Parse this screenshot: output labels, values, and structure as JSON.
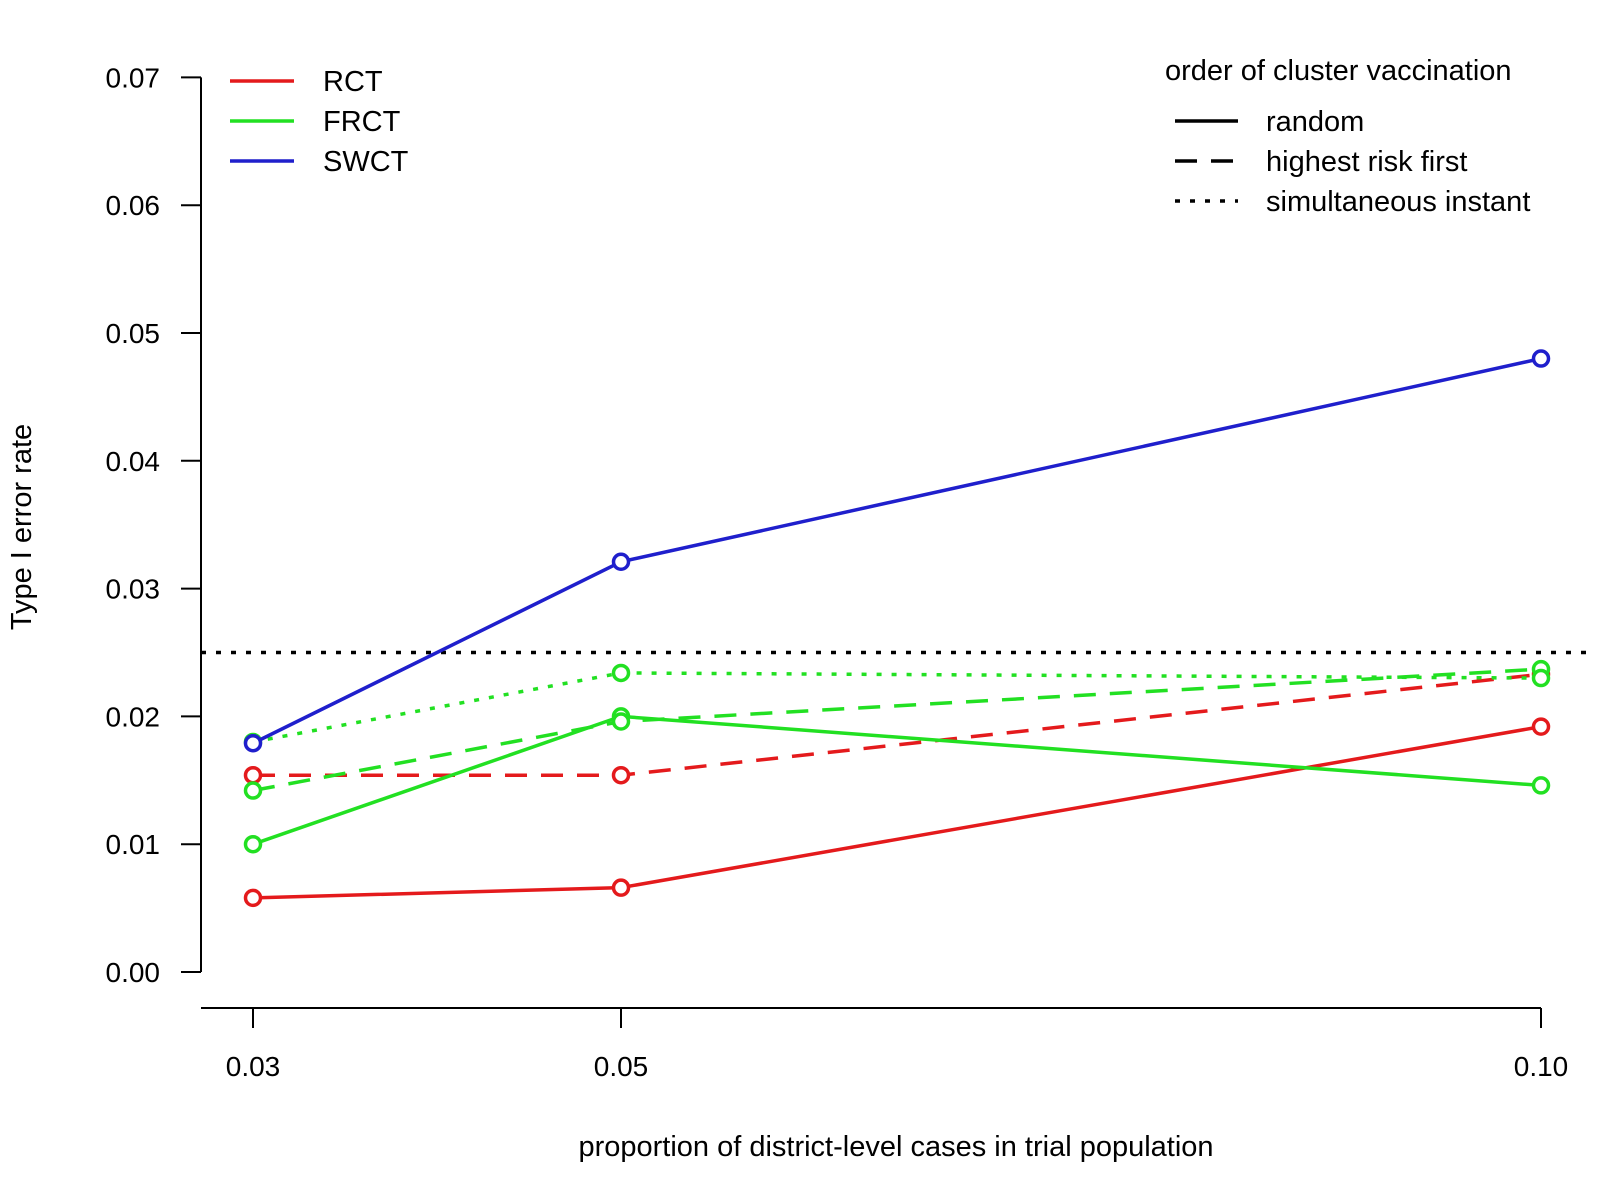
{
  "chart_data": {
    "type": "line",
    "title": "",
    "xlabel": "proportion of district-level cases in trial population",
    "ylabel": "Type I error rate",
    "x": [
      0.03,
      0.05,
      0.1
    ],
    "x_tick_labels": [
      "0.03",
      "0.05",
      "0.10"
    ],
    "ylim": [
      0,
      0.07
    ],
    "y_ticks": [
      0.0,
      0.01,
      0.02,
      0.03,
      0.04,
      0.05,
      0.06,
      0.07
    ],
    "y_tick_labels": [
      "0.00",
      "0.01",
      "0.02",
      "0.03",
      "0.04",
      "0.05",
      "0.06",
      "0.07"
    ],
    "reference_line": {
      "y": 0.025,
      "style": "dotted",
      "color": "#000000"
    },
    "series": [
      {
        "name": "RCT",
        "order": "random",
        "color": "#e41a1c",
        "style": "solid",
        "values": [
          0.0058,
          0.0066,
          0.0192
        ]
      },
      {
        "name": "RCT",
        "order": "highest risk first",
        "color": "#e41a1c",
        "style": "dashed",
        "values": [
          0.0154,
          0.0154,
          0.0233
        ]
      },
      {
        "name": "FRCT",
        "order": "random",
        "color": "#22e022",
        "style": "solid",
        "values": [
          0.01,
          0.02,
          0.0146
        ]
      },
      {
        "name": "FRCT",
        "order": "highest risk first",
        "color": "#22e022",
        "style": "dashed",
        "values": [
          0.0142,
          0.0196,
          0.0237
        ]
      },
      {
        "name": "FRCT",
        "order": "simultaneous instant",
        "color": "#22e022",
        "style": "dotted",
        "values": [
          0.018,
          0.0234,
          0.023
        ]
      },
      {
        "name": "SWCT",
        "order": "random",
        "color": "#1f1fcc",
        "style": "solid",
        "values": [
          0.0179,
          0.0321,
          0.048
        ]
      }
    ],
    "legend_design": {
      "placement": "top-left",
      "items": [
        {
          "label": "RCT",
          "color": "#e41a1c"
        },
        {
          "label": "FRCT",
          "color": "#22e022"
        },
        {
          "label": "SWCT",
          "color": "#1f1fcc"
        }
      ]
    },
    "legend_order": {
      "placement": "top-right",
      "title": "order of cluster vaccination",
      "items": [
        {
          "label": "random",
          "style": "solid"
        },
        {
          "label": "highest risk first",
          "style": "dashed"
        },
        {
          "label": "simultaneous instant",
          "style": "dotted"
        }
      ]
    }
  }
}
